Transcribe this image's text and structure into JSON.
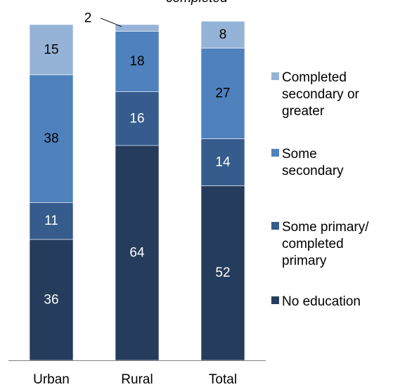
{
  "top_note": "completed",
  "chart_data": {
    "type": "bar",
    "stacked": true,
    "categories": [
      "Urban",
      "Rural",
      "Total"
    ],
    "series": [
      {
        "name": "No education",
        "values": [
          36,
          64,
          52
        ],
        "color": "#253c5c",
        "label_color": "#ffffff"
      },
      {
        "name": "Some primary/ completed primary",
        "values": [
          11,
          16,
          14
        ],
        "color": "#355c8c",
        "label_color": "#ffffff"
      },
      {
        "name": "Some secondary",
        "values": [
          38,
          18,
          27
        ],
        "color": "#4f81bd",
        "label_color": "#000000"
      },
      {
        "name": "Completed secondary or greater",
        "values": [
          15,
          2,
          8
        ],
        "color": "#95b3d7",
        "label_color": "#000000"
      }
    ],
    "legend": [
      {
        "series": 3,
        "lines": [
          "Completed",
          "secondary or",
          "greater"
        ]
      },
      {
        "series": 2,
        "lines": [
          "Some",
          "secondary"
        ]
      },
      {
        "series": 1,
        "lines": [
          "Some primary/",
          "completed",
          "primary"
        ]
      },
      {
        "series": 0,
        "lines": [
          "No education"
        ]
      }
    ],
    "legend_placement": "right",
    "ylim": [
      0,
      100
    ],
    "grid": false
  }
}
